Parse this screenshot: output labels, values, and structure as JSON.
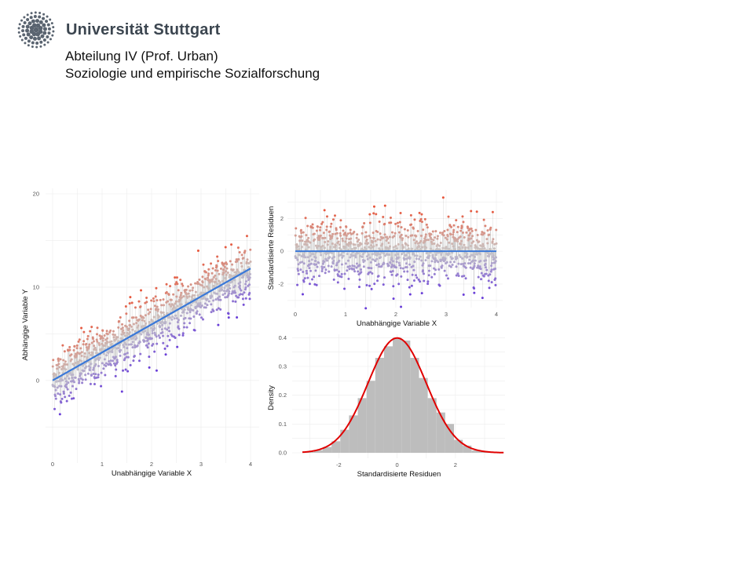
{
  "header": {
    "university": "Universität Stuttgart",
    "department_line1": "Abteilung IV (Prof. Urban)",
    "department_line2": "Soziologie und empirische Sozialforschung"
  },
  "colors": {
    "positive_residual": "#e8553a",
    "neutral": "#c8c8c8",
    "negative_residual": "#6a3fd8",
    "regression_line": "#3a78d8",
    "density_curve": "#e00000",
    "histogram_bar": "#bdbdbd",
    "logo": "#5a6470"
  },
  "chart_data": [
    {
      "id": "scatter",
      "type": "scatter",
      "xlabel": "Unabhängige Variable X",
      "ylabel": "Abhängige Variable Y",
      "xlim": [
        0,
        4
      ],
      "ylim": [
        -7,
        20
      ],
      "x_ticks": [
        "0",
        "1",
        "2",
        "3",
        "4"
      ],
      "y_ticks": [
        "0",
        "10",
        "20"
      ],
      "regression_line": {
        "intercept": 0,
        "slope": 3
      },
      "n_points": 1000,
      "point_color_by": "residual",
      "grid": true
    },
    {
      "id": "residuals",
      "type": "scatter",
      "xlabel": "Unabhängige Variable X",
      "ylabel": "Standardisierte Residuen",
      "xlim": [
        0,
        4
      ],
      "ylim": [
        -3.2,
        3.5
      ],
      "x_ticks": [
        "0",
        "1",
        "2",
        "3",
        "4"
      ],
      "y_ticks": [
        "-2",
        "0",
        "2"
      ],
      "reference_line": 0,
      "n_points": 1000,
      "grid": true
    },
    {
      "id": "histogram",
      "type": "bar",
      "xlabel": "Standardisierte Residuen",
      "ylabel": "Density",
      "xlim": [
        -3.6,
        3.7
      ],
      "ylim": [
        0,
        0.42
      ],
      "x_ticks": [
        "-2",
        "0",
        "2"
      ],
      "y_ticks": [
        "0.0",
        "0.1",
        "0.2",
        "0.3",
        "0.4"
      ],
      "bin_centers": [
        -3.0,
        -2.7,
        -2.4,
        -2.1,
        -1.8,
        -1.5,
        -1.2,
        -0.9,
        -0.6,
        -0.3,
        0.0,
        0.3,
        0.6,
        0.9,
        1.2,
        1.5,
        1.8,
        2.1,
        2.4,
        2.7,
        3.0,
        3.3
      ],
      "densities": [
        0.003,
        0.009,
        0.02,
        0.04,
        0.08,
        0.13,
        0.19,
        0.25,
        0.33,
        0.37,
        0.4,
        0.39,
        0.33,
        0.26,
        0.19,
        0.14,
        0.1,
        0.045,
        0.025,
        0.008,
        0.004,
        0.002
      ],
      "overlay": "normal density (mean 0, sd 1)",
      "grid": true
    }
  ]
}
